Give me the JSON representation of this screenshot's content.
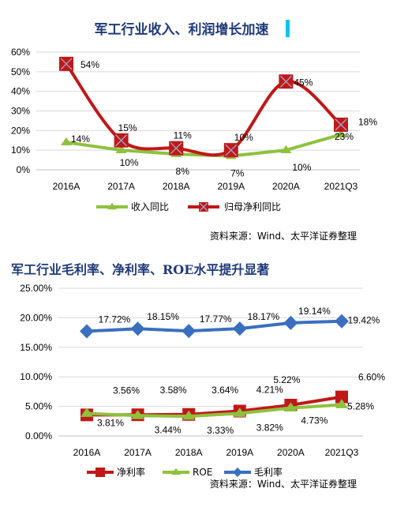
{
  "colors": {
    "green": "#8fc13e",
    "red": "#c01818",
    "blue": "#3a6fc0",
    "title": "#1f3a7a",
    "cursor": "#00c8e8"
  },
  "chart_data": [
    {
      "type": "line",
      "title": "军工行业收入、利润增长加速",
      "categories": [
        "2016A",
        "2017A",
        "2018A",
        "2019A",
        "2020A",
        "2021Q3"
      ],
      "ylim": [
        0,
        60
      ],
      "yticks": [
        "0%",
        "10%",
        "20%",
        "30%",
        "40%",
        "50%",
        "60%"
      ],
      "grid": true,
      "legend": "bottom",
      "series": [
        {
          "name": "收入同比",
          "values": [
            14,
            10,
            8,
            7,
            10,
            18
          ],
          "labels": [
            "14%",
            "10%",
            "8%",
            "7%",
            "10%",
            "18%"
          ],
          "smooth": false
        },
        {
          "name": "归母净利同比",
          "values": [
            54,
            15,
            11,
            10,
            45,
            23
          ],
          "labels": [
            "54%",
            "15%",
            "11%",
            "10%",
            "45%",
            "23%"
          ],
          "smooth": true
        }
      ],
      "source": "资料来源：Wind、太平洋证券整理"
    },
    {
      "type": "line",
      "title": "军工行业毛利率、净利率、ROE水平提升显著",
      "categories": [
        "2016A",
        "2017A",
        "2018A",
        "2019A",
        "2020A",
        "2021Q3"
      ],
      "ylim": [
        0,
        25
      ],
      "yticks": [
        "0.00%",
        "5.00%",
        "10.00%",
        "15.00%",
        "20.00%",
        "25.00%"
      ],
      "grid": true,
      "legend": "bottom",
      "series": [
        {
          "name": "净利率",
          "values": [
            3.56,
            3.58,
            3.64,
            4.21,
            5.22,
            6.6
          ],
          "labels": [
            "3.56%",
            "3.58%",
            "3.64%",
            "4.21%",
            "5.22%",
            "6.60%"
          ]
        },
        {
          "name": "ROE",
          "values": [
            3.81,
            3.44,
            3.33,
            3.82,
            4.73,
            5.28
          ],
          "labels": [
            "3.81%",
            "3.44%",
            "3.33%",
            "3.82%",
            "4.73%",
            "5.28%"
          ]
        },
        {
          "name": "毛利率",
          "values": [
            17.72,
            18.15,
            17.77,
            18.17,
            19.14,
            19.42
          ],
          "labels": [
            "17.72%",
            "18.15%",
            "17.77%",
            "18.17%",
            "19.14%",
            "19.42%"
          ]
        }
      ],
      "source": "资料来源：Wind、太平洋证券整理"
    }
  ]
}
